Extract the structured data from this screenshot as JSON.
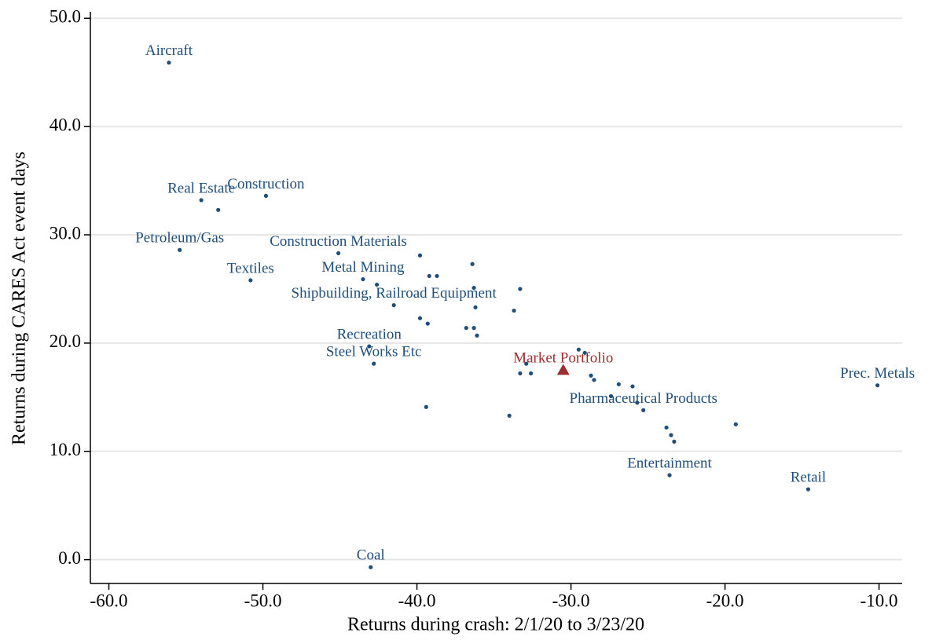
{
  "chart_data": {
    "type": "scatter",
    "x_label": "Returns during crash: 2/1/20 to 3/23/20",
    "y_label": "Returns during CARES Act event days",
    "xlim": [
      -61.2,
      -8.5
    ],
    "ylim": [
      -2.2,
      50.6
    ],
    "xticks": [
      {
        "value": -60,
        "label": "-60.0"
      },
      {
        "value": -50,
        "label": "-50.0"
      },
      {
        "value": -40,
        "label": "-40.0"
      },
      {
        "value": -30,
        "label": "-30.0"
      },
      {
        "value": -20,
        "label": "-20.0"
      },
      {
        "value": -10,
        "label": "-10.0"
      }
    ],
    "yticks": [
      {
        "value": 0,
        "label": "0.0"
      },
      {
        "value": 10,
        "label": "10.0"
      },
      {
        "value": 20,
        "label": "20.0"
      },
      {
        "value": 30,
        "label": "30.0"
      },
      {
        "value": 40,
        "label": "40.0"
      },
      {
        "value": 50,
        "label": "50.0"
      }
    ],
    "grid": true,
    "series": [
      {
        "color": "#1f4e79",
        "marker": "circle",
        "x": [
          -56.1,
          -54.0,
          -52.9,
          -49.8,
          -55.4,
          -50.8,
          -45.1,
          -43.5,
          -42.6,
          -39.8,
          -39.2,
          -38.7,
          -36.4,
          -36.3,
          -33.3,
          -36.2,
          -33.7,
          -41.5,
          -39.8,
          -39.3,
          -36.8,
          -36.3,
          -36.1,
          -43.1,
          -42.8,
          -39.4,
          -34.0,
          -33.3,
          -32.9,
          -32.6,
          -29.5,
          -29.1,
          -28.7,
          -28.5,
          -26.9,
          -26.0,
          -27.4,
          -25.7,
          -25.3,
          -19.3,
          -23.8,
          -23.5,
          -23.3,
          -23.6,
          -14.6,
          -10.1,
          -43.0
        ],
        "values": [
          45.9,
          33.2,
          32.3,
          33.6,
          28.6,
          25.8,
          28.3,
          25.9,
          25.4,
          28.1,
          26.2,
          26.2,
          27.3,
          25.1,
          25.0,
          23.3,
          23.0,
          23.5,
          22.3,
          21.8,
          21.4,
          21.4,
          20.7,
          19.7,
          18.1,
          14.1,
          13.3,
          17.2,
          18.1,
          17.2,
          19.4,
          19.1,
          17.0,
          16.6,
          16.2,
          16.0,
          15.1,
          14.5,
          13.8,
          12.5,
          12.2,
          11.5,
          10.9,
          7.8,
          6.5,
          16.1,
          -0.7
        ],
        "labels": [
          "Aircraft",
          "Real Estate",
          null,
          "Construction",
          "Petroleum/Gas",
          "Textiles",
          "Construction Materials",
          "Metal Mining",
          null,
          null,
          null,
          null,
          null,
          null,
          null,
          null,
          null,
          "Shipbuilding, Railroad Equipment",
          null,
          null,
          null,
          null,
          null,
          "Recreation",
          "Steel Works Etc",
          null,
          null,
          null,
          null,
          null,
          null,
          null,
          null,
          null,
          null,
          null,
          null,
          null,
          "Pharmaceutical Products",
          null,
          null,
          null,
          null,
          "Entertainment",
          "Retail",
          "Prec. Metals",
          "Coal"
        ]
      },
      {
        "color": "#9b2f2f",
        "marker": "triangle",
        "x": [
          -30.5
        ],
        "values": [
          17.5
        ],
        "labels": [
          "Market Portfolio"
        ]
      }
    ]
  }
}
